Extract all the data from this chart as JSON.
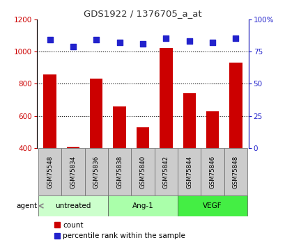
{
  "title": "GDS1922 / 1376705_a_at",
  "samples": [
    "GSM75548",
    "GSM75834",
    "GSM75836",
    "GSM75838",
    "GSM75840",
    "GSM75842",
    "GSM75844",
    "GSM75846",
    "GSM75848"
  ],
  "counts": [
    860,
    410,
    830,
    660,
    530,
    1020,
    740,
    630,
    930
  ],
  "percentiles": [
    84,
    79,
    84,
    82,
    81,
    85,
    83,
    82,
    85
  ],
  "ylim_left": [
    400,
    1200
  ],
  "ylim_right": [
    0,
    100
  ],
  "yticks_left": [
    400,
    600,
    800,
    1000,
    1200
  ],
  "yticks_right": [
    0,
    25,
    50,
    75,
    100
  ],
  "yticklabels_right": [
    "0",
    "25",
    "50",
    "75",
    "100%"
  ],
  "bar_color": "#cc0000",
  "scatter_color": "#2222cc",
  "groups": [
    {
      "label": "untreated",
      "start": 0,
      "end": 3,
      "color": "#ccffcc"
    },
    {
      "label": "Ang-1",
      "start": 3,
      "end": 6,
      "color": "#aaffaa"
    },
    {
      "label": "VEGF",
      "start": 6,
      "end": 9,
      "color": "#44ee44"
    }
  ],
  "tick_bg_color": "#cccccc",
  "agent_label": "agent",
  "legend_count_label": "count",
  "legend_pct_label": "percentile rank within the sample",
  "title_color": "#333333",
  "left_axis_color": "#cc0000",
  "right_axis_color": "#2222cc",
  "grid_yticks": [
    600,
    800,
    1000
  ],
  "fig_bg": "#ffffff"
}
